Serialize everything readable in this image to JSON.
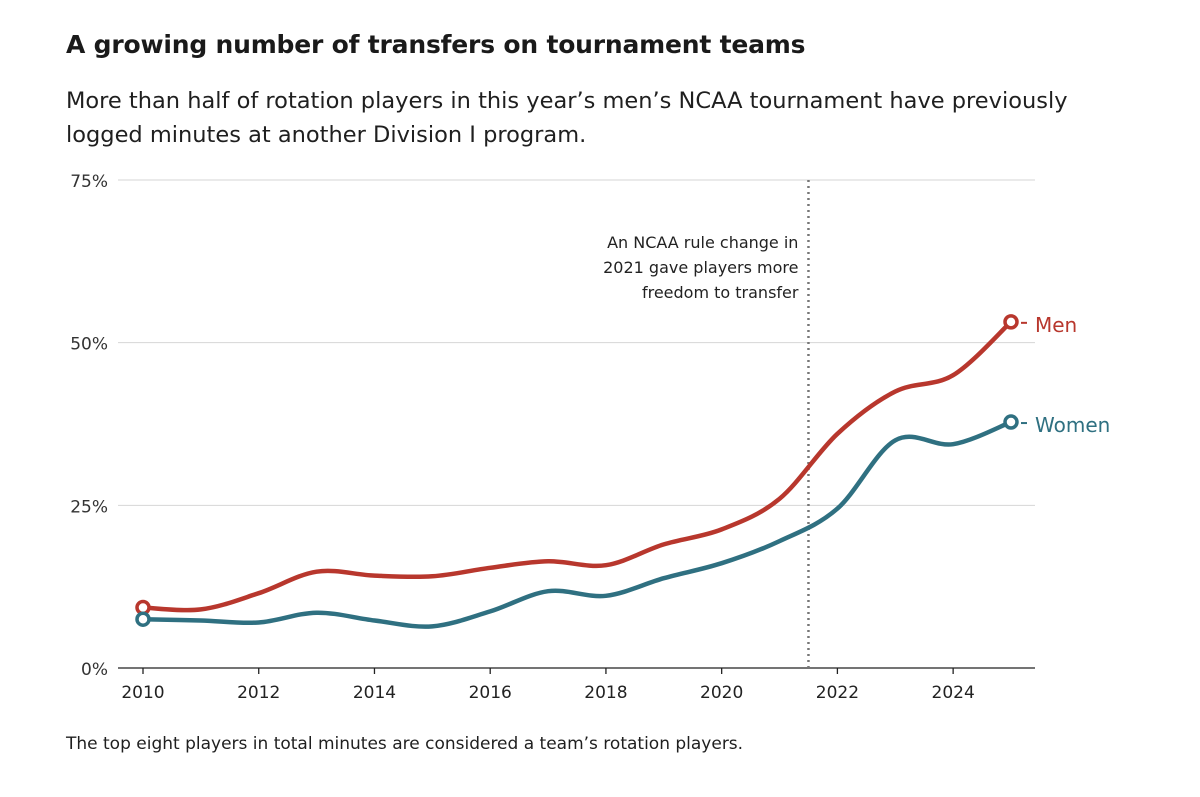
{
  "header": {
    "title": "A growing number of transfers on tournament teams",
    "subtitle": "More than half of rotation players in this year’s men’s NCAA tournament have previously logged minutes at another Division I program."
  },
  "footer": {
    "note": "The top eight players in total minutes are considered a team’s rotation players."
  },
  "chart_data": {
    "type": "line",
    "title": "A growing number of transfers on tournament teams",
    "xlabel": "",
    "ylabel": "",
    "xlim": [
      2010,
      2025
    ],
    "ylim": [
      0,
      75
    ],
    "x_ticks": [
      2010,
      2012,
      2014,
      2016,
      2018,
      2020,
      2022,
      2024
    ],
    "x_tick_labels": [
      "2010",
      "2012",
      "2014",
      "2016",
      "2018",
      "2020",
      "2022",
      "2024"
    ],
    "y_ticks": [
      0,
      25,
      50,
      75
    ],
    "y_tick_labels": [
      "0%",
      "25%",
      "50%",
      "75%"
    ],
    "grid": true,
    "legend": "direct labels at line ends",
    "x": [
      2010,
      2011,
      2012,
      2013,
      2014,
      2015,
      2016,
      2017,
      2018,
      2019,
      2020,
      2021,
      2022,
      2023,
      2024,
      2025
    ],
    "series": [
      {
        "name": "Men",
        "color": "#b8372d",
        "values": [
          9.3,
          9.0,
          11.5,
          14.8,
          14.2,
          14.1,
          15.4,
          16.4,
          15.8,
          19.0,
          21.3,
          26.0,
          36.0,
          42.5,
          45.0,
          53.2
        ]
      },
      {
        "name": "Women",
        "color": "#2f7081",
        "values": [
          7.5,
          7.3,
          7.0,
          8.5,
          7.3,
          6.4,
          8.7,
          11.8,
          11.1,
          13.8,
          16.1,
          19.5,
          24.5,
          35.0,
          34.4,
          37.8
        ]
      }
    ],
    "annotations": [
      {
        "x": 2021.5,
        "style": "dotted vertical line",
        "text": [
          "An NCAA rule change in",
          "2021 gave players more",
          "freedom to transfer"
        ]
      }
    ]
  }
}
